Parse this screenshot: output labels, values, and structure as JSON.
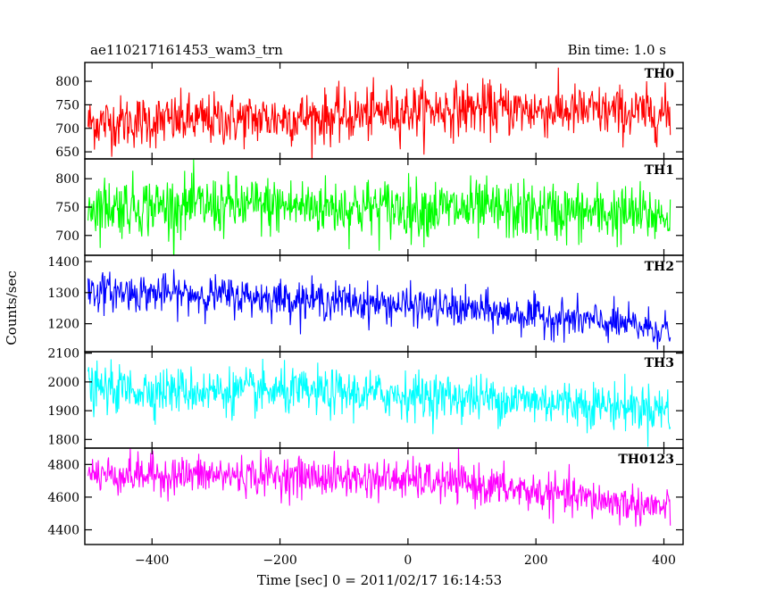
{
  "header": {
    "title_left": "ae110217161453_wam3_trn",
    "title_right": "Bin time: 1.0 s"
  },
  "axes": {
    "xlabel": "Time [sec] 0 = 2011/02/17 16:14:53",
    "ylabel": "Counts/sec"
  },
  "chart_data": {
    "type": "line",
    "layout": "stacked-panels",
    "xlim": [
      -505,
      430
    ],
    "x_range": [
      -500,
      410
    ],
    "bin_time_s": 1.0,
    "xticks": [
      -400,
      -200,
      0,
      200,
      400
    ],
    "x_tick_labels": [
      "−400",
      "−200",
      "0",
      "200",
      "400"
    ],
    "panels": [
      {
        "label": "TH0",
        "color": "#ff0000",
        "ylim": [
          635,
          840
        ],
        "yticks": [
          650,
          700,
          750,
          800
        ],
        "y_tick_labels": [
          "650",
          "700",
          "750",
          "800"
        ],
        "trend": [
          [
            -500,
            712
          ],
          [
            -300,
            718
          ],
          [
            -100,
            725
          ],
          [
            0,
            738
          ],
          [
            100,
            742
          ],
          [
            300,
            735
          ],
          [
            410,
            730
          ]
        ],
        "noise_sd": 28
      },
      {
        "label": "TH1",
        "color": "#00ff00",
        "ylim": [
          665,
          835
        ],
        "yticks": [
          700,
          750,
          800
        ],
        "y_tick_labels": [
          "700",
          "750",
          "800"
        ],
        "trend": [
          [
            -500,
            752
          ],
          [
            -200,
            752
          ],
          [
            0,
            748
          ],
          [
            200,
            742
          ],
          [
            410,
            735
          ]
        ],
        "noise_sd": 26
      },
      {
        "label": "TH2",
        "color": "#0000ff",
        "ylim": [
          1110,
          1420
        ],
        "yticks": [
          1200,
          1300,
          1400
        ],
        "y_tick_labels": [
          "1200",
          "1300",
          "1400"
        ],
        "trend": [
          [
            -500,
            1305
          ],
          [
            -300,
            1292
          ],
          [
            -100,
            1272
          ],
          [
            0,
            1258
          ],
          [
            100,
            1245
          ],
          [
            200,
            1225
          ],
          [
            300,
            1205
          ],
          [
            410,
            1180
          ]
        ],
        "noise_sd": 30
      },
      {
        "label": "TH3",
        "color": "#00ffff",
        "ylim": [
          1770,
          2105
        ],
        "yticks": [
          1800,
          1900,
          2000,
          2100
        ],
        "y_tick_labels": [
          "1800",
          "1900",
          "2000",
          "2100"
        ],
        "trend": [
          [
            -500,
            1975
          ],
          [
            -200,
            1965
          ],
          [
            0,
            1955
          ],
          [
            200,
            1935
          ],
          [
            410,
            1905
          ]
        ],
        "noise_sd": 40
      },
      {
        "label": "TH0123",
        "color": "#ff00ff",
        "ylim": [
          4310,
          4900
        ],
        "yticks": [
          4400,
          4600,
          4800
        ],
        "y_tick_labels": [
          "4400",
          "4600",
          "4800"
        ],
        "trend": [
          [
            -500,
            4740
          ],
          [
            -200,
            4730
          ],
          [
            0,
            4705
          ],
          [
            100,
            4680
          ],
          [
            200,
            4630
          ],
          [
            300,
            4580
          ],
          [
            410,
            4530
          ]
        ],
        "noise_sd": 60
      }
    ]
  }
}
